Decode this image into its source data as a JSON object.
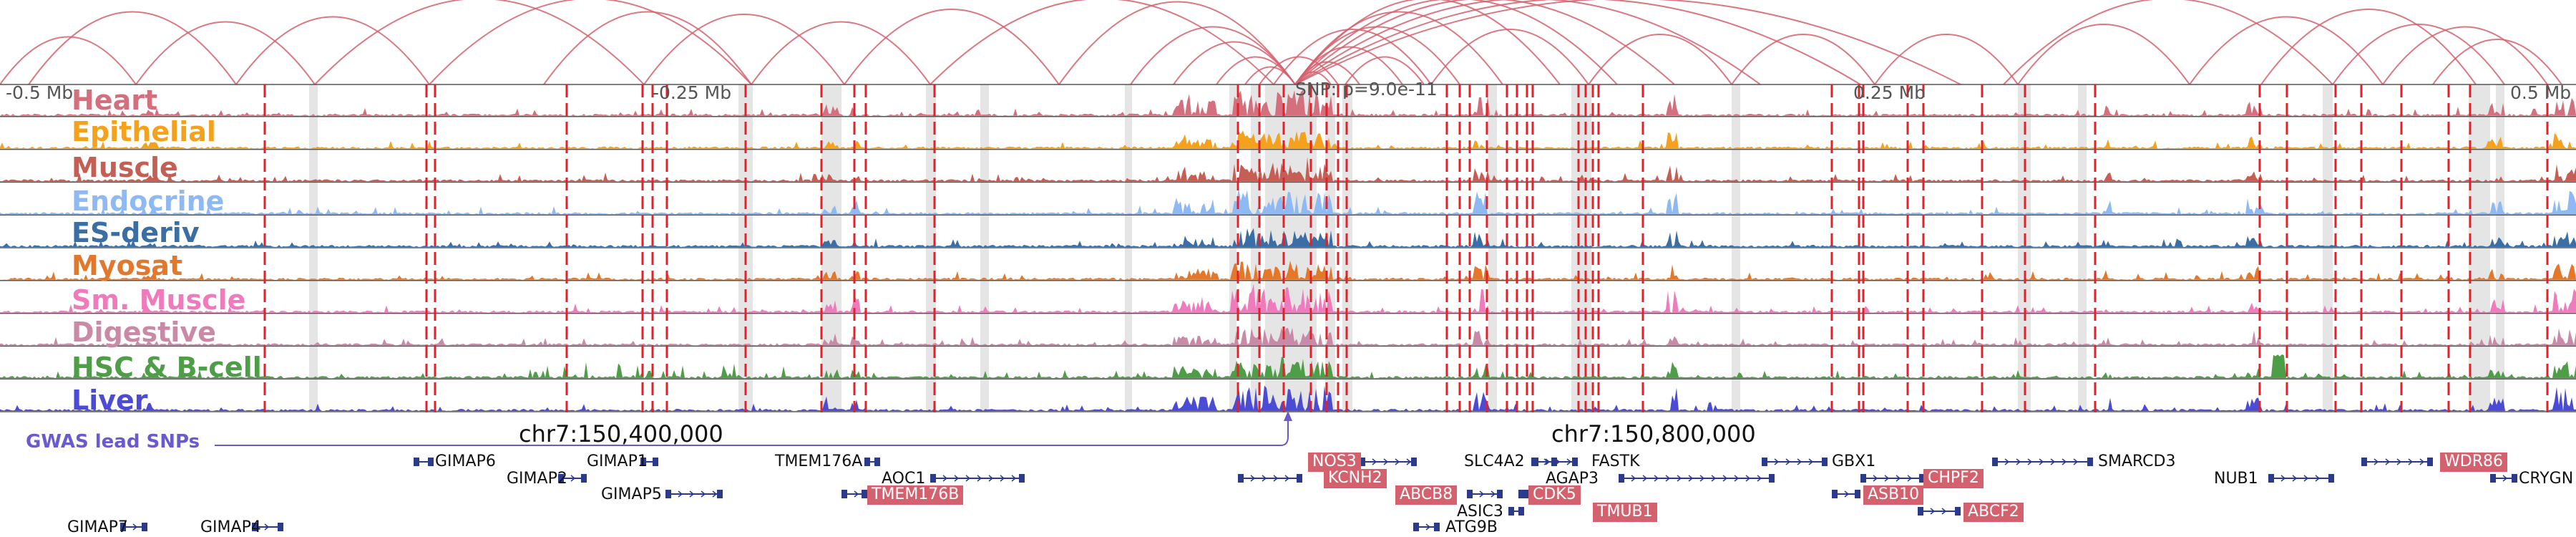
{
  "colors": {
    "arc": "#d4626e",
    "snp_line": "#e0222a",
    "shade": "#e5e5e5",
    "gwas": "#6a5acd",
    "gene_highlight": "#d4626e",
    "gene_line": "#2b3a8a"
  },
  "axis": {
    "ticks": [
      {
        "label": "-0.5 Mb",
        "pos": -0.5
      },
      {
        "label": "-0.25 Mb",
        "pos": -0.25
      },
      {
        "label": "0.25 Mb",
        "pos": 0.25
      },
      {
        "label": "0.5 Mb",
        "pos": 0.5
      }
    ],
    "snp_label": "SNP: p=9.0e-11",
    "coords": [
      {
        "label": "chr7:150,400,000"
      },
      {
        "label": "chr7:150,800,000"
      }
    ]
  },
  "gwas_label": "GWAS lead SNPs",
  "tracks": [
    {
      "name": "Heart",
      "color": "#d4707e"
    },
    {
      "name": "Epithelial",
      "color": "#f4a21d"
    },
    {
      "name": "Muscle",
      "color": "#c55f55"
    },
    {
      "name": "Endocrine",
      "color": "#8fb9f2"
    },
    {
      "name": "ES-deriv",
      "color": "#3a6ea5"
    },
    {
      "name": "Myosat",
      "color": "#e3782a"
    },
    {
      "name": "Sm. Muscle",
      "color": "#ef7bbd"
    },
    {
      "name": "Digestive",
      "color": "#c98aa8"
    },
    {
      "name": "HSC & B-cell",
      "color": "#4e9e47"
    },
    {
      "name": "Liver",
      "color": "#4b4bd6"
    }
  ],
  "genes": [
    {
      "name": "GIMAP6",
      "highlight": false
    },
    {
      "name": "GIMAP1",
      "highlight": false
    },
    {
      "name": "GIMAP2",
      "highlight": false
    },
    {
      "name": "GIMAP5",
      "highlight": false
    },
    {
      "name": "GIMAP7",
      "highlight": false
    },
    {
      "name": "GIMAP4",
      "highlight": false
    },
    {
      "name": "TMEM176A",
      "highlight": false
    },
    {
      "name": "AOC1",
      "highlight": false
    },
    {
      "name": "TMEM176B",
      "highlight": true
    },
    {
      "name": "NOS3",
      "highlight": true
    },
    {
      "name": "KCNH2",
      "highlight": true
    },
    {
      "name": "ABCB8",
      "highlight": true
    },
    {
      "name": "ASIC3",
      "highlight": false
    },
    {
      "name": "ATG9B",
      "highlight": false
    },
    {
      "name": "SLC4A2",
      "highlight": false
    },
    {
      "name": "AGAP3",
      "highlight": false
    },
    {
      "name": "FASTK",
      "highlight": false
    },
    {
      "name": "CDK5",
      "highlight": true
    },
    {
      "name": "TMUB1",
      "highlight": true
    },
    {
      "name": "GBX1",
      "highlight": false
    },
    {
      "name": "ASB10",
      "highlight": true
    },
    {
      "name": "CHPF2",
      "highlight": true
    },
    {
      "name": "ABCF2",
      "highlight": true
    },
    {
      "name": "SMARCD3",
      "highlight": false
    },
    {
      "name": "NUB1",
      "highlight": false
    },
    {
      "name": "WDR86",
      "highlight": true
    },
    {
      "name": "CRYGN",
      "highlight": false
    }
  ]
}
